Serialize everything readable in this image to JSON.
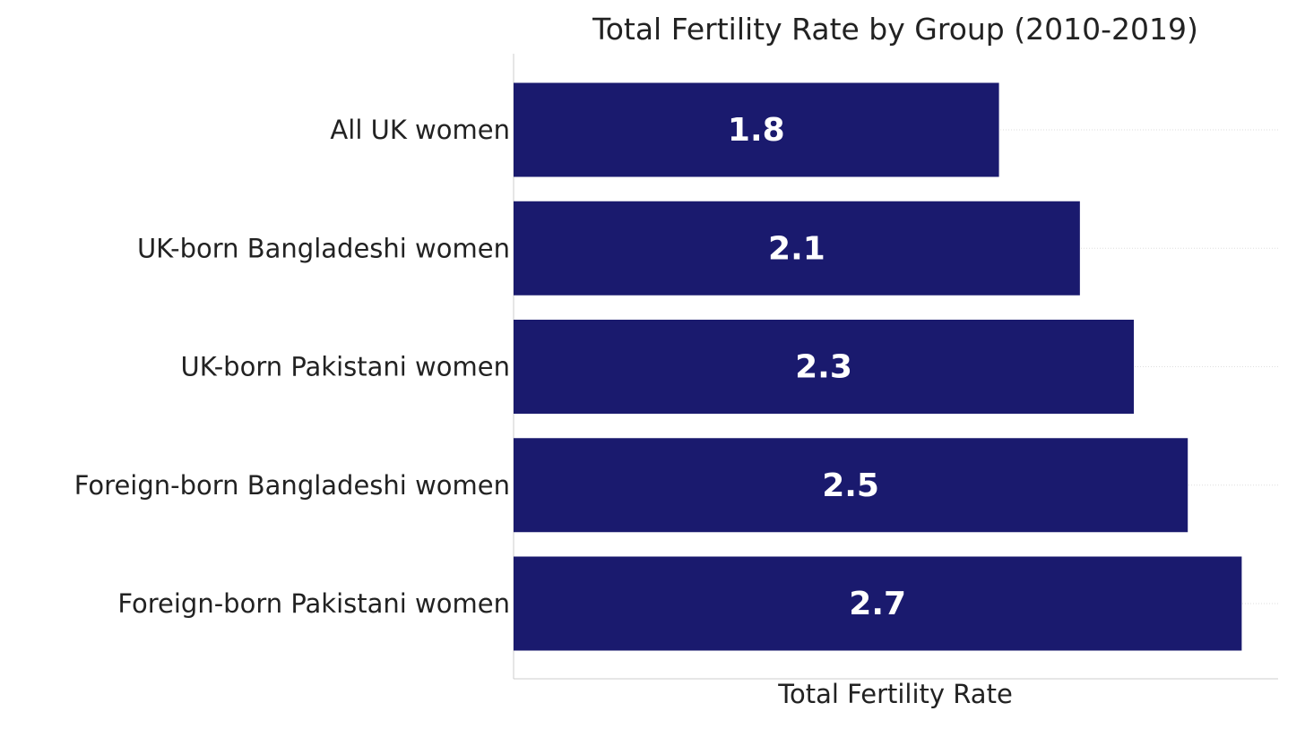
{
  "chart_data": {
    "type": "bar",
    "orientation": "horizontal",
    "title": "Total Fertility Rate by Group (2010-2019)",
    "xlabel": "Total Fertility Rate",
    "ylabel": "",
    "categories": [
      "All UK women",
      "UK-born Bangladeshi women",
      "UK-born Pakistani women",
      "Foreign-born Bangladeshi women",
      "Foreign-born Pakistani women"
    ],
    "values": [
      1.8,
      2.1,
      2.3,
      2.5,
      2.7
    ],
    "data_labels": [
      "1.8",
      "2.1",
      "2.3",
      "2.5",
      "2.7"
    ],
    "xlim": [
      0,
      2.835
    ],
    "grid": "x-dotted",
    "bar_color": "#1a1a6e",
    "label_color": "#ffffff",
    "text_color": "#222222",
    "axis_color": "#cccccc",
    "grid_color": "#dddddd"
  }
}
